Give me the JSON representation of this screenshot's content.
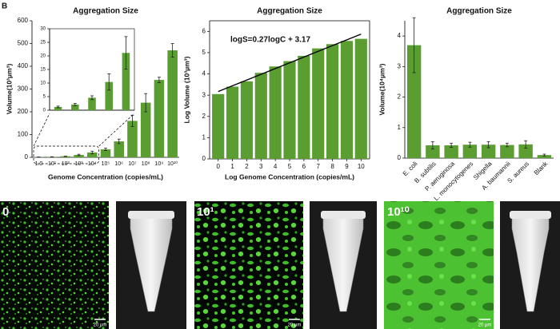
{
  "panel_label": "B",
  "chart_data": [
    {
      "type": "bar",
      "title": "Aggregation Size",
      "x_label": "Genome Concentration (copies/mL)",
      "y_label": "Volume(10³μm³)",
      "categories": [
        "1.0",
        "10¹",
        "10²",
        "10³",
        "10⁴",
        "10⁵",
        "10⁶",
        "10⁷",
        "10⁸",
        "10⁹",
        "10¹⁰"
      ],
      "values": [
        1.2,
        2.1,
        4.6,
        10.4,
        21.1,
        35,
        70,
        160,
        240,
        340,
        470
      ],
      "errors": [
        0.3,
        0.4,
        0.7,
        3,
        6,
        5,
        10,
        25,
        40,
        12,
        30
      ],
      "color": "#5a9e32",
      "ylim": [
        0,
        600
      ],
      "yticks": [
        0,
        100,
        200,
        300,
        400,
        500,
        600
      ],
      "inset": {
        "ylim": [
          0,
          30
        ],
        "yticks": [
          0,
          5,
          10,
          15,
          20,
          25,
          30
        ]
      }
    },
    {
      "type": "bar",
      "title": "Aggregation Size",
      "x_label": "Log Genome Concentration (copies/mL)",
      "y_label": "Log Volume (10³μm³)",
      "x": [
        0,
        1,
        2,
        3,
        4,
        5,
        6,
        7,
        8,
        9,
        10
      ],
      "values": [
        3.05,
        3.4,
        3.65,
        4.05,
        4.35,
        4.6,
        4.85,
        5.2,
        5.4,
        5.55,
        5.65
      ],
      "color": "#5a9e32",
      "xlim": [
        -0.6,
        10.6
      ],
      "xticks": [
        0,
        1,
        2,
        3,
        4,
        5,
        6,
        7,
        8,
        9,
        10
      ],
      "ylim": [
        0,
        6.5
      ],
      "yticks": [
        0,
        1,
        2,
        3,
        4,
        5,
        6
      ],
      "fit": {
        "x": [
          0,
          10
        ],
        "values": [
          3.17,
          5.87
        ],
        "color": "#000000"
      },
      "annotation": "logS=0.27logC + 3.17"
    },
    {
      "type": "bar",
      "title": "Aggregation Size",
      "y_label": "Volume(10⁴μm³)",
      "categories": [
        "E. coli",
        "B. subtilis",
        "P. aeruginosa",
        "L. monocytogenes",
        "Shigella",
        "A. baumannii",
        "S. aureus",
        "Blank"
      ],
      "values": [
        3.7,
        0.42,
        0.42,
        0.44,
        0.44,
        0.43,
        0.45,
        0.1
      ],
      "errors": [
        0.9,
        0.12,
        0.07,
        0.08,
        0.1,
        0.06,
        0.12,
        0.03
      ],
      "color": "#5a9e32",
      "ylim": [
        0,
        4.5
      ],
      "yticks": [
        0,
        1,
        2,
        3,
        4
      ]
    }
  ],
  "images": [
    {
      "label": "0",
      "scale_bar": "20 μm"
    },
    {
      "label": "10¹",
      "scale_bar": "20 μm"
    },
    {
      "label": "10¹⁰",
      "scale_bar": "20 μm"
    }
  ]
}
